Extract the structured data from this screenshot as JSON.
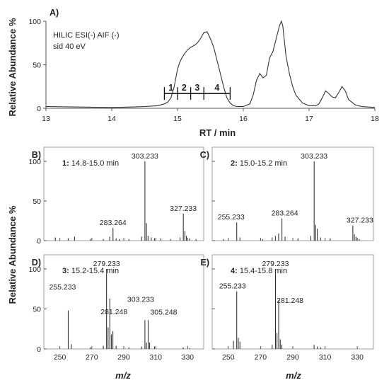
{
  "figure": {
    "ylabel_top": "Relative Abundance %",
    "ylabel_bottom": "Relative Abundance %",
    "xlabel_bottom": "m/z"
  },
  "chart_data": [
    {
      "panel": "A)",
      "type": "line",
      "annotation_lines": [
        "HILIC ESI(-) AIF (-)",
        "sid 40 eV"
      ],
      "xlabel": "RT / min",
      "ylabel": "Relative Abundance %",
      "xlim": [
        13,
        18
      ],
      "ylim": [
        0,
        100
      ],
      "xticks": [
        13,
        14,
        15,
        16,
        17,
        18
      ],
      "yticks": [
        0,
        50,
        100
      ],
      "x": [
        13.0,
        13.5,
        14.0,
        14.3,
        14.5,
        14.6,
        14.7,
        14.8,
        14.85,
        14.9,
        14.95,
        15.0,
        15.03,
        15.06,
        15.1,
        15.15,
        15.2,
        15.25,
        15.3,
        15.35,
        15.4,
        15.45,
        15.5,
        15.55,
        15.6,
        15.65,
        15.7,
        15.75,
        15.8,
        15.85,
        15.9,
        16.0,
        16.1,
        16.15,
        16.2,
        16.25,
        16.3,
        16.35,
        16.4,
        16.45,
        16.5,
        16.55,
        16.58,
        16.6,
        16.62,
        16.65,
        16.7,
        16.75,
        16.8,
        16.9,
        17.0,
        17.1,
        17.15,
        17.2,
        17.25,
        17.3,
        17.35,
        17.4,
        17.45,
        17.5,
        17.55,
        17.6,
        17.7,
        17.8,
        18.0
      ],
      "y": [
        2,
        1.5,
        1,
        1.5,
        2,
        2.5,
        3,
        5,
        7,
        12,
        25,
        45,
        52,
        57,
        62,
        67,
        70,
        72,
        75,
        80,
        87,
        88,
        80,
        70,
        55,
        40,
        25,
        12,
        6,
        3,
        2,
        2,
        5,
        15,
        32,
        40,
        35,
        38,
        58,
        65,
        80,
        95,
        100,
        95,
        80,
        60,
        40,
        25,
        15,
        6,
        3,
        3,
        5,
        12,
        20,
        17,
        13,
        12,
        18,
        25,
        20,
        10,
        4,
        2,
        1
      ],
      "integration": {
        "range": [
          14.8,
          15.8
        ],
        "level": 17,
        "ticks": [
          14.8,
          15.0,
          15.2,
          15.4,
          15.8
        ],
        "labels": [
          "1",
          "2",
          "3",
          "4"
        ],
        "label_positions": [
          14.9,
          15.1,
          15.3,
          15.6
        ]
      }
    },
    {
      "panel": "B)",
      "type": "bar",
      "fraction_num": "1:",
      "fraction_label": "14.8-15.0 min",
      "xlim": [
        240,
        340
      ],
      "ylim": [
        0,
        100
      ],
      "xticks": [
        250,
        270,
        290,
        310,
        330
      ],
      "yticks": [
        0,
        50,
        100
      ],
      "mz": [
        247.2,
        255.2,
        259.2,
        269.2,
        277.2,
        281.2,
        283.264,
        285.2,
        287.2,
        293.2,
        301.2,
        303.233,
        304.2,
        305.2,
        307.2,
        309.2,
        313.2,
        319.2,
        325.2,
        327.233,
        328.2,
        329.2,
        331.2,
        335.2
      ],
      "intensity": [
        4,
        3,
        5,
        2,
        2,
        5,
        16,
        3,
        2,
        2,
        5,
        100,
        22,
        6,
        4,
        3,
        3,
        2,
        4,
        34,
        12,
        6,
        3,
        2
      ],
      "peak_labels": [
        {
          "mz": 303.233,
          "text": "303.233"
        },
        {
          "mz": 283.264,
          "text": "283.264"
        },
        {
          "mz": 327.233,
          "text": "327.233"
        }
      ]
    },
    {
      "panel": "C)",
      "type": "bar",
      "fraction_num": "2:",
      "fraction_label": "15.0-15.2 min",
      "xlim": [
        240,
        340
      ],
      "ylim": [
        0,
        100
      ],
      "xticks": [
        250,
        270,
        290,
        310,
        330
      ],
      "yticks": [
        0,
        50,
        100
      ],
      "mz": [
        247.2,
        255.233,
        257.2,
        271.2,
        277.2,
        279.2,
        281.2,
        283.264,
        285.2,
        293.2,
        301.2,
        303.233,
        304.2,
        305.2,
        307.2,
        313.2,
        327.233,
        328.2,
        329.2,
        331.2
      ],
      "intensity": [
        2,
        23,
        4,
        2,
        4,
        6,
        9,
        28,
        5,
        3,
        6,
        100,
        20,
        15,
        4,
        3,
        19,
        8,
        5,
        2
      ],
      "peak_labels": [
        {
          "mz": 303.233,
          "text": "303.233"
        },
        {
          "mz": 255.233,
          "text": "255.233"
        },
        {
          "mz": 283.264,
          "text": "283.264"
        },
        {
          "mz": 327.233,
          "text": "327.233"
        }
      ]
    },
    {
      "panel": "D)",
      "type": "bar",
      "fraction_num": "3:",
      "fraction_label": "15.2-15.4 min",
      "xlim": [
        240,
        340
      ],
      "ylim": [
        0,
        100
      ],
      "xticks": [
        250,
        270,
        290,
        310,
        330
      ],
      "yticks": [
        0,
        50,
        100
      ],
      "mz": [
        255.233,
        257.2,
        269.2,
        277.2,
        279.233,
        280.2,
        281.248,
        282.2,
        283.2,
        285.2,
        293.2,
        301.2,
        303.233,
        304.2,
        305.248,
        306.2,
        309.2,
        327.2,
        331.2
      ],
      "intensity": [
        48,
        6,
        2,
        4,
        100,
        27,
        63,
        18,
        22,
        4,
        2,
        3,
        36,
        8,
        36,
        8,
        3,
        2,
        1
      ],
      "peak_labels": [
        {
          "mz": 279.233,
          "text": "279.233"
        },
        {
          "mz": 281.248,
          "text": "281.248"
        },
        {
          "mz": 255.233,
          "text": "255.233"
        },
        {
          "mz": 303.233,
          "text": "303.233"
        },
        {
          "mz": 305.248,
          "text": "305.248"
        }
      ]
    },
    {
      "panel": "E)",
      "type": "bar",
      "fraction_num": "4:",
      "fraction_label": "15.4-15.8 min",
      "xlim": [
        240,
        340
      ],
      "ylim": [
        0,
        100
      ],
      "xticks": [
        250,
        270,
        290,
        310,
        330
      ],
      "yticks": [
        0,
        50,
        100
      ],
      "mz": [
        253.2,
        255.233,
        256.2,
        257.2,
        277.2,
        279.233,
        280.2,
        281.248,
        282.2,
        283.2,
        303.2,
        305.2,
        307.2
      ],
      "intensity": [
        10,
        72,
        14,
        9,
        5,
        100,
        20,
        61,
        12,
        5,
        5,
        3,
        2
      ],
      "peak_labels": [
        {
          "mz": 279.233,
          "text": "279.233"
        },
        {
          "mz": 255.233,
          "text": "255.233"
        },
        {
          "mz": 281.248,
          "text": "281.248"
        }
      ]
    }
  ]
}
